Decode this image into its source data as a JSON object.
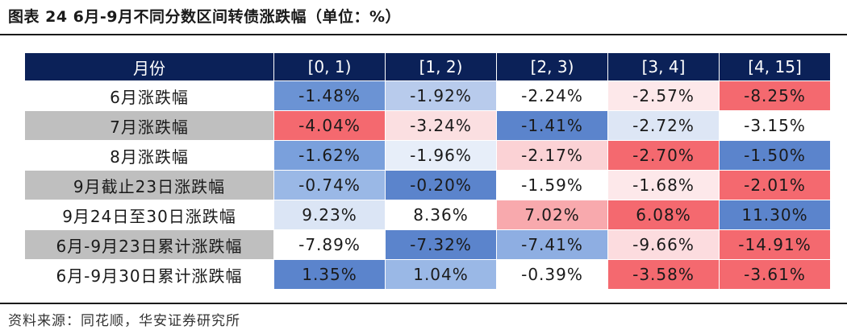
{
  "title": "图表 24 6月-9月不同分数区间转债涨跌幅（单位：%）",
  "source": "资料来源：同花顺，华安证券研究所",
  "table": {
    "headers": [
      "月份",
      "[0, 1)",
      "[1, 2)",
      "[2, 3)",
      "[3, 4]",
      "[4, 15]"
    ],
    "rows": [
      {
        "label": "6月涨跌幅",
        "shaded": false,
        "cells": [
          {
            "v": "-1.48%",
            "bg": "#6b93d4"
          },
          {
            "v": "-1.92%",
            "bg": "#b8cbec"
          },
          {
            "v": "-2.24%",
            "bg": "#ffffff"
          },
          {
            "v": "-2.57%",
            "bg": "#fde8ea"
          },
          {
            "v": "-8.25%",
            "bg": "#f4696f"
          }
        ]
      },
      {
        "label": "7月涨跌幅",
        "shaded": true,
        "cells": [
          {
            "v": "-4.04%",
            "bg": "#f4696f"
          },
          {
            "v": "-3.24%",
            "bg": "#fbdfe1"
          },
          {
            "v": "-1.41%",
            "bg": "#5b84cc"
          },
          {
            "v": "-2.72%",
            "bg": "#dde6f5"
          },
          {
            "v": "-3.15%",
            "bg": "#ffffff"
          }
        ]
      },
      {
        "label": "8月涨跌幅",
        "shaded": false,
        "cells": [
          {
            "v": "-1.62%",
            "bg": "#7aa0dc"
          },
          {
            "v": "-1.96%",
            "bg": "#e7eef9"
          },
          {
            "v": "-2.17%",
            "bg": "#fbd2d5"
          },
          {
            "v": "-2.70%",
            "bg": "#f4696f"
          },
          {
            "v": "-1.50%",
            "bg": "#5b84cc"
          }
        ]
      },
      {
        "label": "9月截止23日涨跌幅",
        "shaded": true,
        "cells": [
          {
            "v": "-0.74%",
            "bg": "#9ab8e6"
          },
          {
            "v": "-0.20%",
            "bg": "#5b84cc"
          },
          {
            "v": "-1.59%",
            "bg": "#ffffff"
          },
          {
            "v": "-1.68%",
            "bg": "#fde8ea"
          },
          {
            "v": "-2.01%",
            "bg": "#f4696f"
          }
        ]
      },
      {
        "label": "9月24日至30日涨跌幅",
        "shaded": false,
        "cells": [
          {
            "v": "9.23%",
            "bg": "#dbe5f5"
          },
          {
            "v": "8.36%",
            "bg": "#ffffff"
          },
          {
            "v": "7.02%",
            "bg": "#f8a9ad"
          },
          {
            "v": "6.08%",
            "bg": "#f4696f"
          },
          {
            "v": "11.30%",
            "bg": "#5b84cc"
          }
        ]
      },
      {
        "label": "6月-9月23日累计涨跌幅",
        "shaded": true,
        "cells": [
          {
            "v": "-7.89%",
            "bg": "#ffffff"
          },
          {
            "v": "-7.32%",
            "bg": "#5b84cc"
          },
          {
            "v": "-7.41%",
            "bg": "#8eaee2"
          },
          {
            "v": "-9.66%",
            "bg": "#fcdcdf"
          },
          {
            "v": "-14.91%",
            "bg": "#f4696f"
          }
        ]
      },
      {
        "label": "6月-9月30日累计涨跌幅",
        "shaded": false,
        "cells": [
          {
            "v": "1.35%",
            "bg": "#5b84cc"
          },
          {
            "v": "1.04%",
            "bg": "#9ab8e6"
          },
          {
            "v": "-0.39%",
            "bg": "#ffffff"
          },
          {
            "v": "-3.58%",
            "bg": "#f4696f"
          },
          {
            "v": "-3.61%",
            "bg": "#f4696f"
          }
        ]
      }
    ]
  }
}
